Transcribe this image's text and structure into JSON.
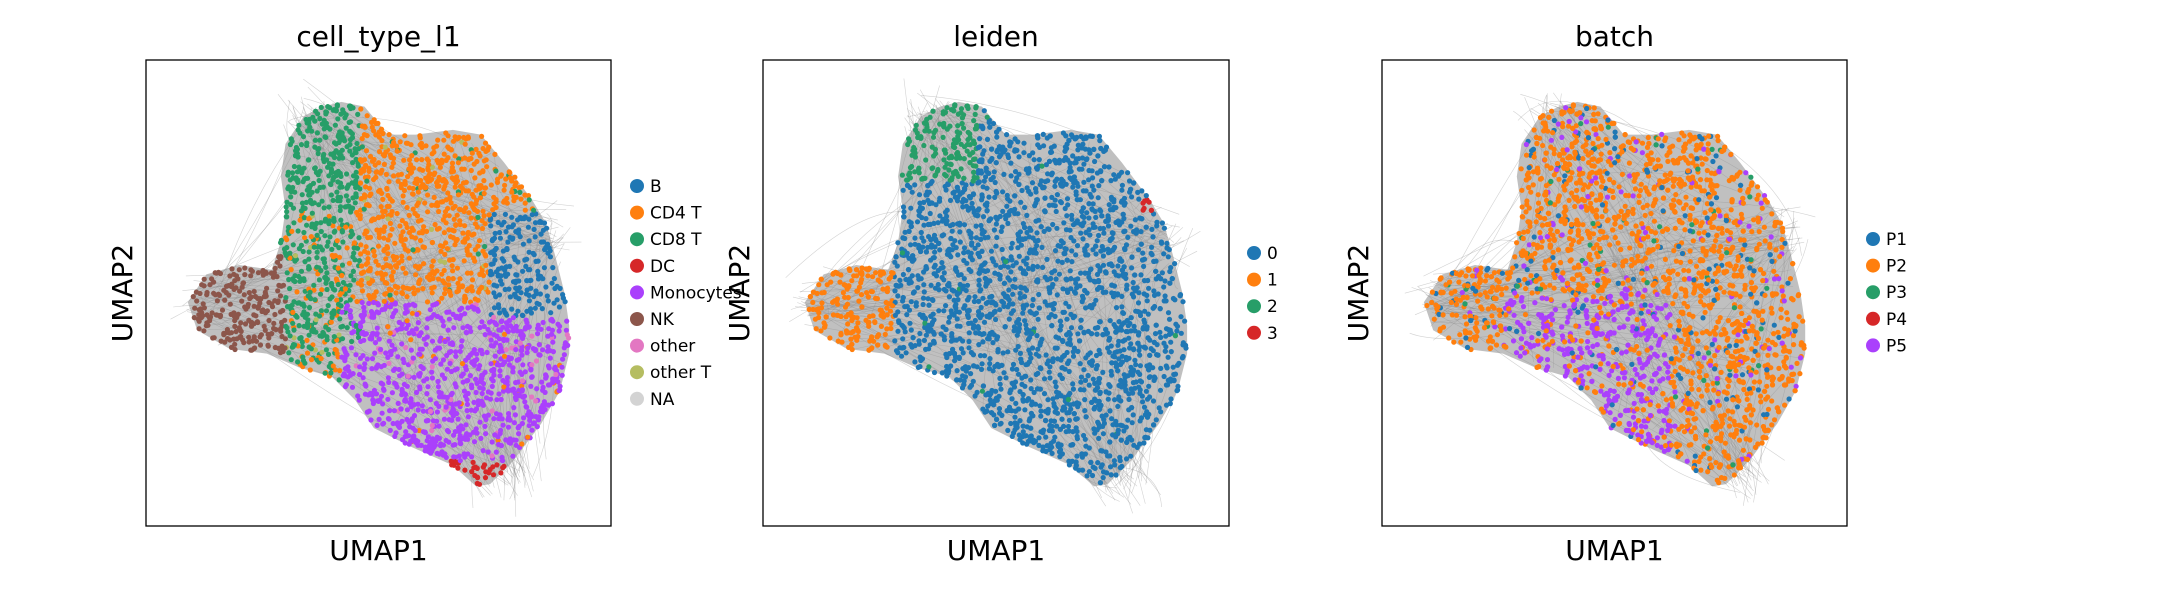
{
  "chart_data": [
    {
      "type": "scatter",
      "title": "cell_type_l1",
      "xlabel": "UMAP1",
      "ylabel": "UMAP2",
      "grid": false,
      "ticks": false,
      "legend_placement": "right",
      "edge_color": "#7f7f7f",
      "series": [
        {
          "name": "B",
          "color": "#1f77b4"
        },
        {
          "name": "CD4 T",
          "color": "#ff7f0e"
        },
        {
          "name": "CD8 T",
          "color": "#279e68"
        },
        {
          "name": "DC",
          "color": "#d62728"
        },
        {
          "name": "Monocytes",
          "color": "#aa40fc"
        },
        {
          "name": "NK",
          "color": "#8c564b"
        },
        {
          "name": "other",
          "color": "#e377c2"
        },
        {
          "name": "other T",
          "color": "#b5bd61"
        },
        {
          "name": "NA",
          "color": "#d3d3d3"
        }
      ]
    },
    {
      "type": "scatter",
      "title": "leiden",
      "xlabel": "UMAP1",
      "ylabel": "UMAP2",
      "grid": false,
      "ticks": false,
      "legend_placement": "right",
      "edge_color": "#7f7f7f",
      "series": [
        {
          "name": "0",
          "color": "#1f77b4"
        },
        {
          "name": "1",
          "color": "#ff7f0e"
        },
        {
          "name": "2",
          "color": "#279e68"
        },
        {
          "name": "3",
          "color": "#d62728"
        }
      ]
    },
    {
      "type": "scatter",
      "title": "batch",
      "xlabel": "UMAP1",
      "ylabel": "UMAP2",
      "grid": false,
      "ticks": false,
      "legend_placement": "right",
      "edge_color": "#7f7f7f",
      "series": [
        {
          "name": "P1",
          "color": "#1f77b4"
        },
        {
          "name": "P2",
          "color": "#ff7f0e"
        },
        {
          "name": "P3",
          "color": "#279e68"
        },
        {
          "name": "P4",
          "color": "#d62728"
        },
        {
          "name": "P5",
          "color": "#aa40fc"
        }
      ]
    }
  ]
}
